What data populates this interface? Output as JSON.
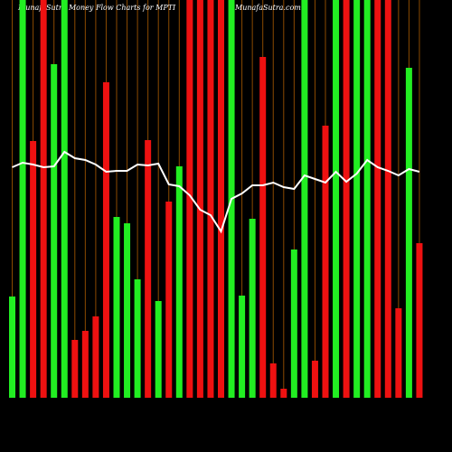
{
  "chart_data": {
    "type": "bar",
    "title": "MunafaSutra  Money Flow  Charts for MPTI",
    "subtitle": "MunafaSutra.com",
    "ylim": [
      0,
      440
    ],
    "grid_color": "#8b4a00",
    "series": [
      {
        "type": "bar",
        "values": [
          112,
          440,
          284,
          440,
          369,
          440,
          64,
          74,
          90,
          349,
          200,
          193,
          131,
          285,
          107,
          217,
          256,
          440,
          440,
          440,
          440,
          440,
          113,
          198,
          377,
          38,
          10,
          164,
          440,
          41,
          301,
          440,
          440,
          440,
          440,
          440,
          440,
          99,
          365,
          171
        ],
        "colors": [
          "#22ee22",
          "#22ee22",
          "#ee1111",
          "#ee1111",
          "#22ee22",
          "#22ee22",
          "#ee1111",
          "#ee1111",
          "#ee1111",
          "#ee1111",
          "#22ee22",
          "#22ee22",
          "#22ee22",
          "#ee1111",
          "#22ee22",
          "#ee1111",
          "#22ee22",
          "#ee1111",
          "#ee1111",
          "#ee1111",
          "#ee1111",
          "#22ee22",
          "#22ee22",
          "#22ee22",
          "#ee1111",
          "#ee1111",
          "#ee1111",
          "#22ee22",
          "#22ee22",
          "#ee1111",
          "#ee1111",
          "#22ee22",
          "#ee1111",
          "#22ee22",
          "#22ee22",
          "#ee1111",
          "#ee1111",
          "#ee1111",
          "#22ee22",
          "#ee1111"
        ]
      },
      {
        "type": "line",
        "color": "#ffffff",
        "values": [
          255,
          260,
          258,
          255,
          256,
          272,
          265,
          263,
          258,
          250,
          251,
          251,
          258,
          257,
          259,
          236,
          234,
          224,
          208,
          202,
          184,
          220,
          226,
          235,
          235,
          238,
          233,
          231,
          246,
          242,
          238,
          250,
          239,
          248,
          263,
          255,
          251,
          246,
          253,
          250
        ]
      }
    ]
  }
}
